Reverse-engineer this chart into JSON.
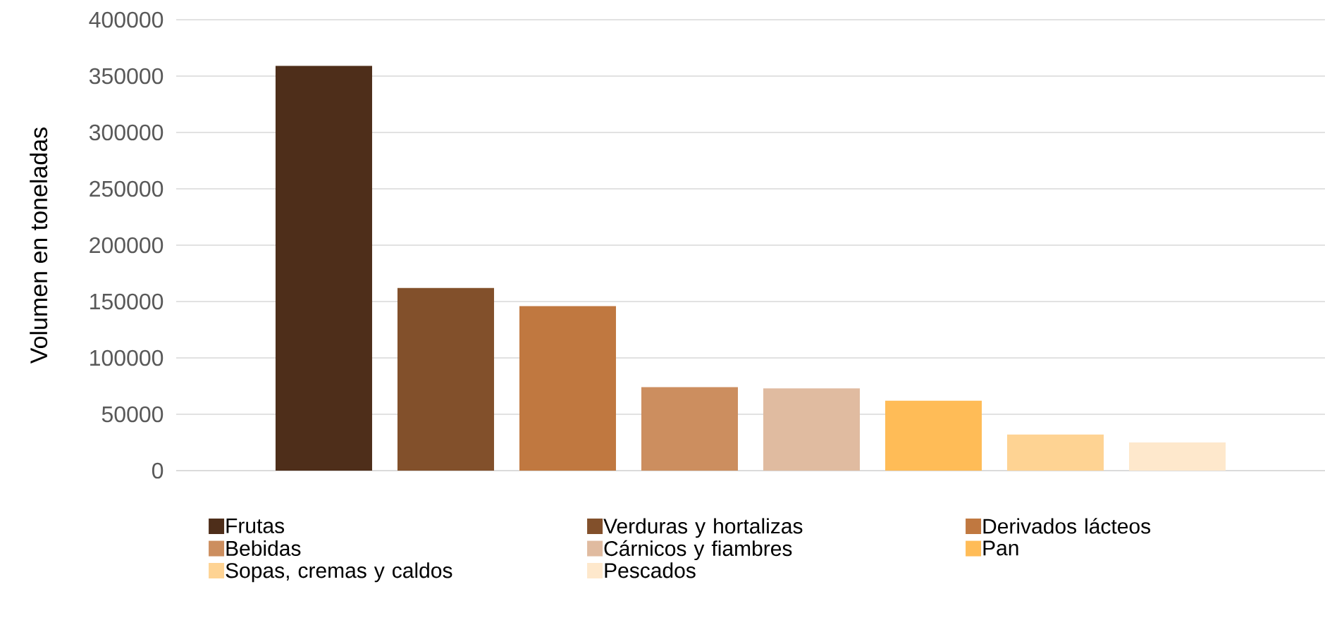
{
  "chart_data": {
    "type": "bar",
    "ylabel": "Volumen en toneladas",
    "categories": [
      null
    ],
    "series": [
      {
        "name": "Frutas",
        "color": "#4e2e1a",
        "values": [
          359000
        ]
      },
      {
        "name": "Verduras y hortalizas",
        "color": "#82502b",
        "values": [
          162000
        ]
      },
      {
        "name": "Derivados lácteos",
        "color": "#c07840",
        "values": [
          146000
        ]
      },
      {
        "name": "Bebidas",
        "color": "#cc8e5f",
        "values": [
          74000
        ]
      },
      {
        "name": "Cárnicos y fiambres",
        "color": "#e0bba0",
        "values": [
          73000
        ]
      },
      {
        "name": "Pan",
        "color": "#ffbc57",
        "values": [
          62000
        ]
      },
      {
        "name": "Sopas, cremas y caldos",
        "color": "#fed393",
        "values": [
          32000
        ]
      },
      {
        "name": "Pescados",
        "color": "#fee8cc",
        "values": [
          25000
        ]
      }
    ],
    "ylim": [
      0,
      400000
    ],
    "yticks": [
      0,
      50000,
      100000,
      150000,
      200000,
      250000,
      300000,
      350000,
      400000
    ],
    "grid": "y",
    "legend": "bottom"
  }
}
